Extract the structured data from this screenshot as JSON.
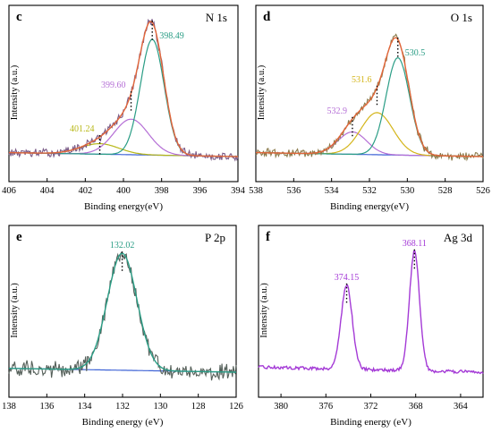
{
  "chart_data": [
    {
      "type": "line",
      "panel_letter": "c",
      "element_label": "N 1s",
      "xlabel": "Binding energy(eV)",
      "ylabel": "Intensity (a.u.)",
      "xlim": [
        406,
        394
      ],
      "x_ticks": [
        406,
        404,
        402,
        400,
        398,
        396,
        394
      ],
      "ylim": [
        0,
        1.0
      ],
      "grid": false,
      "colors": {
        "raw": "#7a5a86",
        "envelope": "#e2663a",
        "baseline": "#3f63d6",
        "peak_main": "#2a9d85",
        "peak_2": "#b56fd6",
        "peak_3": "#b8b818"
      },
      "baseline": {
        "x": [
          406,
          394
        ],
        "y": [
          0.03,
          0.0
        ]
      },
      "peaks": [
        {
          "center": 398.49,
          "amplitude": 0.88,
          "sigma": 0.62,
          "label": "398.49",
          "color": "#2a9d85"
        },
        {
          "center": 399.6,
          "amplitude": 0.27,
          "sigma": 0.9,
          "label": "399.60",
          "color": "#b56fd6"
        },
        {
          "center": 401.24,
          "amplitude": 0.08,
          "sigma": 1.0,
          "label": "401.24",
          "color": "#b8b818"
        }
      ]
    },
    {
      "type": "line",
      "panel_letter": "d",
      "element_label": "O 1s",
      "xlabel": "Binding energy(eV)",
      "ylabel": "Intensity (a.u.)",
      "xlim": [
        538,
        526
      ],
      "x_ticks": [
        538,
        536,
        534,
        532,
        530,
        528,
        526
      ],
      "ylim": [
        0,
        1.0
      ],
      "grid": false,
      "colors": {
        "raw": "#8a7a4a",
        "envelope": "#e2663a",
        "baseline": "#3f63d6",
        "peak_main": "#2a9d85",
        "peak_2": "#d4b51a",
        "peak_3": "#b56fd6"
      },
      "baseline": {
        "x": [
          538,
          526
        ],
        "y": [
          0.03,
          0.0
        ]
      },
      "peaks": [
        {
          "center": 530.5,
          "amplitude": 0.74,
          "sigma": 0.62,
          "label": "530.5",
          "color": "#2a9d85"
        },
        {
          "center": 531.6,
          "amplitude": 0.32,
          "sigma": 0.85,
          "label": "531.6",
          "color": "#d4b51a"
        },
        {
          "center": 532.9,
          "amplitude": 0.17,
          "sigma": 0.75,
          "label": "532.9",
          "color": "#b56fd6"
        }
      ]
    },
    {
      "type": "line",
      "panel_letter": "e",
      "element_label": "P 2p",
      "xlabel": "Binding energy (eV)",
      "ylabel": "Intensity (a.u.)",
      "xlim": [
        138,
        126
      ],
      "x_ticks": [
        138,
        136,
        134,
        132,
        130,
        128,
        126
      ],
      "ylim": [
        0,
        1.0
      ],
      "grid": false,
      "colors": {
        "raw": "#55605a",
        "envelope": "#2a9d85",
        "baseline": "#3f63d6"
      },
      "baseline": {
        "x": [
          138,
          126
        ],
        "y": [
          0.03,
          0.0
        ]
      },
      "peaks": [
        {
          "center": 132.02,
          "amplitude": 0.92,
          "sigma": 0.78,
          "label": "132.02",
          "color": "#2a9d85"
        }
      ]
    },
    {
      "type": "line",
      "panel_letter": "f",
      "element_label": "Ag 3d",
      "xlabel": "Binding energy (eV)",
      "ylabel": "Intensity (a.u.)",
      "xlim": [
        382,
        362
      ],
      "x_ticks": [
        380,
        376,
        372,
        368,
        364
      ],
      "ylim": [
        0,
        1.0
      ],
      "grid": false,
      "colors": {
        "raw": "#a43ad6"
      },
      "baseline": {
        "x": [
          382,
          362
        ],
        "y": [
          0.04,
          0.0
        ]
      },
      "peaks": [
        {
          "center": 374.15,
          "amplitude": 0.66,
          "sigma": 0.5,
          "label": "374.15",
          "color": "#a43ad6"
        },
        {
          "center": 368.11,
          "amplitude": 0.94,
          "sigma": 0.45,
          "label": "368.11",
          "color": "#a43ad6"
        }
      ]
    }
  ]
}
